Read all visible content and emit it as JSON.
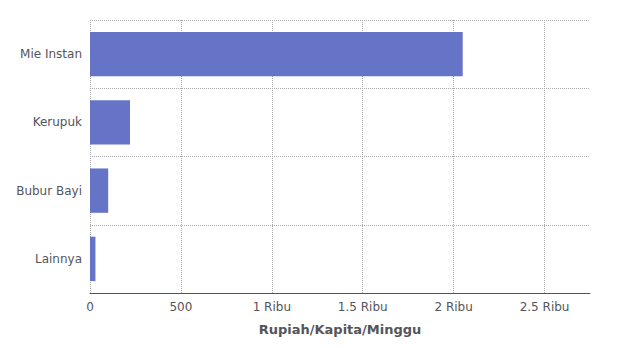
{
  "chart_data": {
    "type": "bar",
    "orientation": "horizontal",
    "categories": [
      "Lainnya",
      "Bubur Bayi",
      "Kerupuk",
      "Mie Instan"
    ],
    "values": [
      30,
      100,
      220,
      2050
    ],
    "color": "#6674C8",
    "xlabel": "Rupiah/Kapita/Minggu",
    "xlim": [
      0,
      2750
    ],
    "xticks": [
      0,
      500,
      {
        "value": 1000,
        "label": "1 Ribu"
      },
      {
        "value": 1500,
        "label": "1.5 Ribu"
      },
      {
        "value": 2000,
        "label": "2 Ribu"
      },
      {
        "value": 2500,
        "label": "2.5 Ribu"
      }
    ],
    "grid": true
  }
}
